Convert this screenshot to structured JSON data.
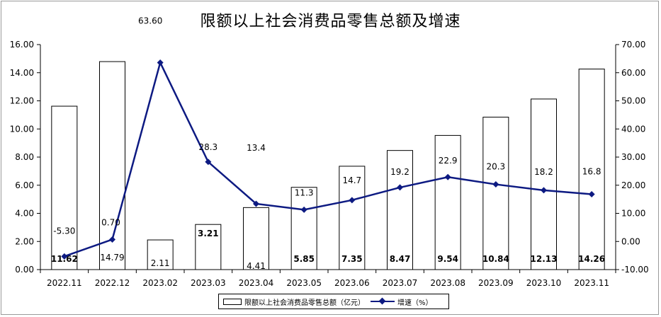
{
  "chart_data": {
    "type": "bar",
    "title": "限额以上社会消费品零售总额及增速",
    "categories": [
      "2022.11",
      "2022.12",
      "2023.02",
      "2023.03",
      "2023.04",
      "2023.05",
      "2023.06",
      "2023.07",
      "2023.08",
      "2023.09",
      "2023.10",
      "2023.11"
    ],
    "series": [
      {
        "name": "限额以上社会消费品零售总额（亿元）",
        "type": "bar",
        "axis": "left",
        "values": [
          11.62,
          14.79,
          2.11,
          3.21,
          4.41,
          5.85,
          7.35,
          8.47,
          9.54,
          10.84,
          12.13,
          14.26
        ],
        "labels": [
          "11.62",
          "14.79",
          "2.11",
          "3.21",
          "4.41",
          "5.85",
          "7.35",
          "8.47",
          "9.54",
          "10.84",
          "12.13",
          "14.26"
        ],
        "color": "#ffffff",
        "border": "#000000"
      },
      {
        "name": "增速（%）",
        "type": "line",
        "axis": "right",
        "values": [
          -5.3,
          0.7,
          63.6,
          28.3,
          13.4,
          11.3,
          14.7,
          19.2,
          22.9,
          20.3,
          18.2,
          16.8
        ],
        "labels": [
          "-5.30",
          "0.70",
          "63.60",
          "28.3",
          "13.4",
          "11.3",
          "14.7",
          "19.2",
          "22.9",
          "20.3",
          "18.2",
          "16.8"
        ],
        "color": "#0d1a82"
      }
    ],
    "ylim_left": [
      0,
      16
    ],
    "yticks_left": [
      "0.00",
      "2.00",
      "4.00",
      "6.00",
      "8.00",
      "10.00",
      "12.00",
      "14.00",
      "16.00"
    ],
    "ylim_right": [
      -10,
      70
    ],
    "yticks_right": [
      "-10.00",
      "0.00",
      "10.00",
      "20.00",
      "30.00",
      "40.00",
      "50.00",
      "60.00",
      "70.00"
    ],
    "grid": false,
    "legend_position": "bottom"
  },
  "legend": {
    "bar_label": "限额以上社会消费品零售总额（亿元）",
    "line_label": "增速（%）"
  }
}
